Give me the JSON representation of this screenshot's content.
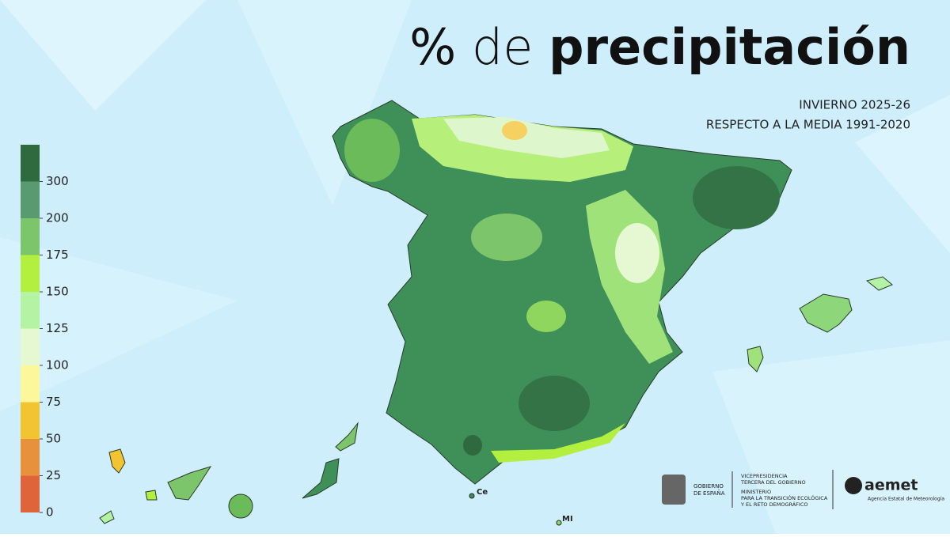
{
  "title": {
    "light": "%",
    "light2": "de",
    "bold": "precipitación"
  },
  "subtitle": [
    "INVIERNO 2025-26",
    "RESPECTO A LA MEDIA 1991-2020"
  ],
  "legend": {
    "ticks": [
      0,
      25,
      50,
      75,
      100,
      125,
      150,
      175,
      200,
      300
    ],
    "colors": [
      "#e0643a",
      "#e8913c",
      "#f2c431",
      "#fdf79c",
      "#e6f8d2",
      "#b4f3a4",
      "#b2ef3e",
      "#7cc56a",
      "#5a9a70",
      "#2f6a3e"
    ]
  },
  "map_labels": [
    "Ce",
    "MI"
  ],
  "footer": {
    "gobierno": [
      "GOBIERNO",
      "DE ESPAÑA"
    ],
    "vicepresidencia": [
      "VICEPRESIDENCIA",
      "TERCERA DEL GOBIERNO"
    ],
    "ministerio": [
      "MINISTERIO",
      "PARA LA TRANSICIÓN ECOLÓGICA",
      "Y EL RETO DEMOGRÁFICO"
    ],
    "brand": "aemet",
    "agency": "Agencia Estatal de Meteorología"
  }
}
